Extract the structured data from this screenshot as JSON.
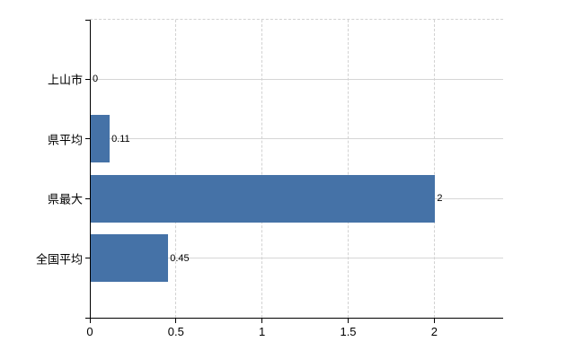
{
  "chart_data": {
    "type": "bar",
    "orientation": "horizontal",
    "title": "",
    "categories": [
      "上山市",
      "県平均",
      "県最大",
      "全国平均"
    ],
    "values": [
      0,
      0.11,
      2,
      0.45
    ],
    "value_labels": [
      "0",
      "0.11",
      "2",
      "0.45"
    ],
    "x_ticks": [
      0,
      0.5,
      1,
      1.5,
      2
    ],
    "x_tick_labels": [
      "0",
      "0.5",
      "1",
      "1.5",
      "2"
    ],
    "xlim": [
      0,
      2.4
    ],
    "grid": true,
    "legend": false,
    "colors": {
      "bar": "#4572a7",
      "axis": "#000000",
      "gridline_solid": "#d6d6d6",
      "gridline_dashed": "#d2d2d2",
      "background": "#ffffff",
      "text": "#000000"
    }
  }
}
